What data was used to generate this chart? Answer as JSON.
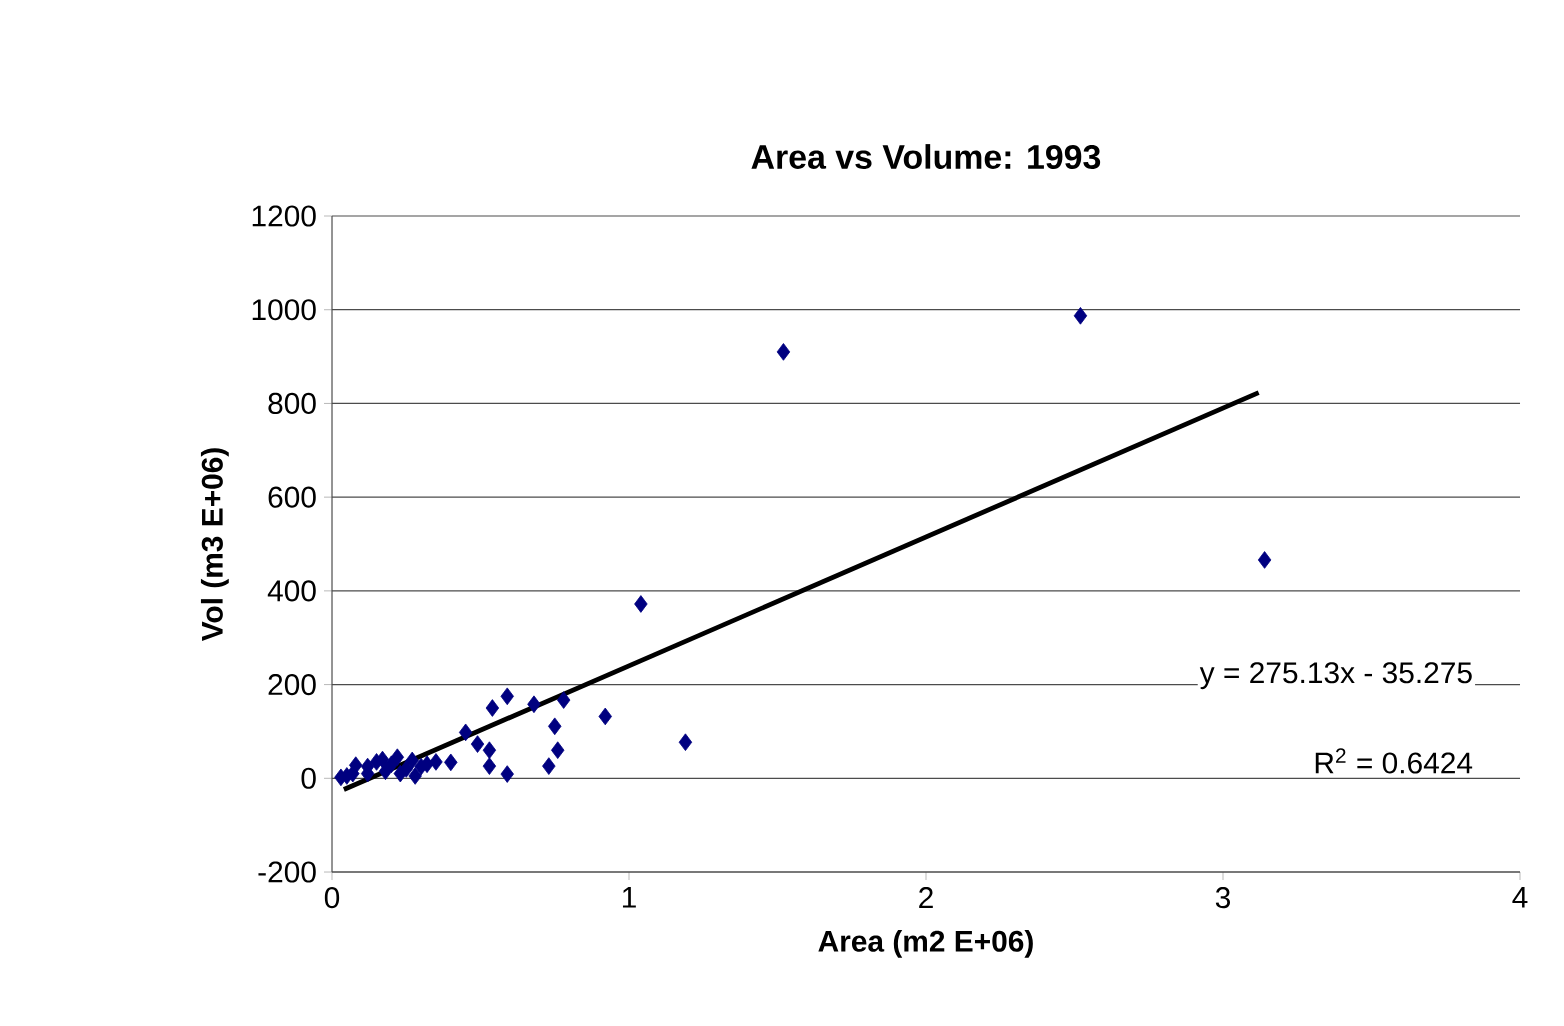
{
  "chart_data": {
    "type": "scatter",
    "title": "Area vs Volume: 1993",
    "xlabel": "Area (m2 E+06)",
    "ylabel": "Vol (m3 E+06)",
    "xlim": [
      0,
      4
    ],
    "ylim": [
      -200,
      1200
    ],
    "xticks": [
      0,
      1,
      2,
      3,
      4
    ],
    "yticks": [
      -200,
      0,
      200,
      400,
      600,
      800,
      1000,
      1200
    ],
    "grid": "y",
    "marker": "diamond",
    "annotations": [
      "y = 275.13x - 35.275",
      "R$^{2}$ = 0.6424"
    ],
    "series": [
      {
        "color": "#000080",
        "x": [
          1.52,
          2.52,
          3.14,
          1.04,
          1.19,
          0.92,
          0.59,
          0.54,
          0.68,
          0.78,
          0.75,
          0.76,
          0.73,
          0.59,
          0.53,
          0.53,
          0.45,
          0.49,
          0.4,
          0.03,
          0.05,
          0.07,
          0.09,
          0.1,
          0.12,
          0.15,
          0.17,
          0.2,
          0.22,
          0.25,
          0.27,
          0.28,
          0.3,
          0.32,
          0.35,
          0.12,
          0.18,
          0.08,
          0.23
        ],
        "values": [
          910,
          987,
          466,
          372,
          77,
          132,
          175,
          150,
          158,
          167,
          111,
          60,
          26,
          9,
          26,
          60,
          98,
          73,
          34,
          2,
          5,
          10,
          null,
          null,
          25,
          35,
          40,
          30,
          45,
          20,
          38,
          5,
          25,
          30,
          35,
          10,
          15,
          28,
          10
        ]
      },
      {
        "type": "line",
        "color": "#000000",
        "x": [
          0.04,
          3.12
        ],
        "values": [
          -24,
          823
        ],
        "marker": "none"
      }
    ]
  }
}
